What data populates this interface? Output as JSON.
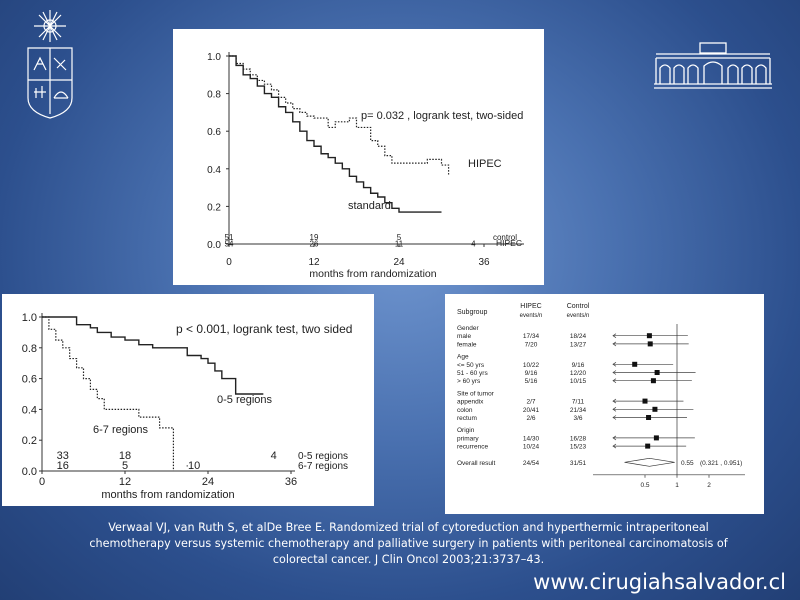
{
  "chart_data": [
    {
      "type": "line",
      "annotation": "p=  0.032 , logrank test, two-sided",
      "xlabel": "months from randomization",
      "xticks": [
        "0",
        "12",
        "24",
        "36"
      ],
      "yticks": [
        "0.0",
        "0.2",
        "0.4",
        "0.6",
        "0.8",
        "1.0"
      ],
      "xlim": [
        0,
        36
      ],
      "ylim": [
        0,
        1.0
      ],
      "series": [
        {
          "name": "HIPEC",
          "style": "dotted",
          "x": [
            0,
            1,
            2,
            3,
            4,
            5,
            6,
            7,
            8,
            9,
            10,
            11,
            12,
            14,
            15,
            17,
            18,
            20,
            21,
            22,
            23,
            24,
            26,
            27,
            28,
            30,
            31
          ],
          "y": [
            1.0,
            0.96,
            0.93,
            0.9,
            0.87,
            0.85,
            0.82,
            0.78,
            0.75,
            0.72,
            0.7,
            0.68,
            0.67,
            0.62,
            0.65,
            0.67,
            0.62,
            0.55,
            0.52,
            0.47,
            0.43,
            0.43,
            0.43,
            0.43,
            0.45,
            0.42,
            0.37
          ]
        },
        {
          "name": "standard",
          "style": "solid",
          "x": [
            0,
            1,
            2,
            3,
            4,
            5,
            6,
            7,
            8,
            9,
            10,
            11,
            12,
            13,
            14,
            15,
            16,
            17,
            18,
            19,
            20,
            21,
            22,
            23,
            24,
            25,
            30
          ],
          "y": [
            1.0,
            0.95,
            0.9,
            0.88,
            0.84,
            0.8,
            0.78,
            0.73,
            0.7,
            0.65,
            0.6,
            0.55,
            0.52,
            0.48,
            0.46,
            0.43,
            0.4,
            0.36,
            0.33,
            0.3,
            0.27,
            0.25,
            0.22,
            0.19,
            0.17,
            0.17,
            0.17
          ]
        }
      ],
      "at_risk": {
        "control": [
          "51",
          "19",
          "5"
        ],
        "hipec": [
          "54",
          "26",
          "11",
          "4"
        ],
        "control_label": "control",
        "hipec_label": "HIPEC"
      }
    },
    {
      "type": "line",
      "annotation": "p < 0.001, logrank test, two sided",
      "xlabel": "months from randomization",
      "xticks": [
        "0",
        "12",
        "24",
        "36"
      ],
      "yticks": [
        "0.0",
        "0.2",
        "0.4",
        "0.6",
        "0.8",
        "1.0"
      ],
      "xlim": [
        0,
        36
      ],
      "ylim": [
        0,
        1.0
      ],
      "series": [
        {
          "name": "0-5 regions",
          "style": "solid",
          "x": [
            0,
            4,
            5,
            7,
            8,
            10,
            12,
            14,
            16,
            18,
            20,
            21,
            23,
            24,
            25,
            26,
            27,
            28,
            32
          ],
          "y": [
            1.0,
            1.0,
            0.95,
            0.93,
            0.9,
            0.87,
            0.85,
            0.82,
            0.8,
            0.8,
            0.8,
            0.75,
            0.73,
            0.7,
            0.65,
            0.6,
            0.6,
            0.5,
            0.5
          ]
        },
        {
          "name": "6-7 regions",
          "style": "dotted",
          "x": [
            0,
            1,
            2,
            3,
            4,
            5,
            6,
            7,
            8,
            9,
            13,
            14,
            15,
            16,
            17,
            18,
            19
          ],
          "y": [
            1.0,
            0.92,
            0.85,
            0.8,
            0.73,
            0.67,
            0.6,
            0.53,
            0.47,
            0.4,
            0.4,
            0.35,
            0.35,
            0.35,
            0.28,
            0.28,
            0.0
          ]
        }
      ],
      "at_risk": {
        "row1": [
          "33",
          "18",
          "4"
        ],
        "row2": [
          "16",
          "5",
          "10"
        ],
        "row1_label": "0-5 regions",
        "row2_label": "6-7 regions"
      }
    },
    {
      "type": "forest",
      "headers": {
        "subgroup": "Subgroup",
        "hipec": "HIPEC",
        "control": "Control",
        "hipec_sub": "events/n",
        "control_sub": "events/n"
      },
      "axis_ticks": [
        "0.5",
        "1",
        "2"
      ],
      "groups": [
        {
          "label": "Gender",
          "rows": [
            {
              "label": "male",
              "hipec": "17/34",
              "control": "18/24",
              "hr": 0.55
            },
            {
              "label": "female",
              "hipec": "7/20",
              "control": "13/27",
              "hr": 0.56
            }
          ]
        },
        {
          "label": "Age",
          "rows": [
            {
              "label": "<= 50 yrs",
              "hipec": "10/22",
              "control": "9/16",
              "hr": 0.4
            },
            {
              "label": "51 - 60 yrs",
              "hipec": "9/16",
              "control": "12/20",
              "hr": 0.65
            },
            {
              "label": "> 60 yrs",
              "hipec": "5/16",
              "control": "10/15",
              "hr": 0.6
            }
          ]
        },
        {
          "label": "Site of tumor",
          "rows": [
            {
              "label": "appendix",
              "hipec": "2/7",
              "control": "7/11",
              "hr": 0.5
            },
            {
              "label": "colon",
              "hipec": "20/41",
              "control": "21/34",
              "hr": 0.62
            },
            {
              "label": "rectum",
              "hipec": "2/6",
              "control": "3/6",
              "hr": 0.54
            }
          ]
        },
        {
          "label": "Origin",
          "rows": [
            {
              "label": "primary",
              "hipec": "14/30",
              "control": "16/28",
              "hr": 0.64
            },
            {
              "label": "recurrence",
              "hipec": "10/24",
              "control": "15/23",
              "hr": 0.53
            }
          ]
        }
      ],
      "overall": {
        "label": "Overall result",
        "hipec": "24/54",
        "control": "31/51",
        "hr": 0.55,
        "text": "0.55",
        "ci": "(0.321 , 0.951)"
      }
    }
  ],
  "citation": "Verwaal VJ, van Ruth S, et alDe Bree E. Randomized trial of cytoreduction and hyperthermic intraperitoneal chemotherapy versus systemic chemotherapy and palliative surgery in patients with peritoneal carcinomatosis of colorectal cancer. J Clin Oncol 2003;21:3737–43.",
  "website": "www.cirugiahsalvador.cl",
  "colors": {
    "background": "#3a5f9e",
    "panel": "#ffffff",
    "ink": "#222222"
  }
}
